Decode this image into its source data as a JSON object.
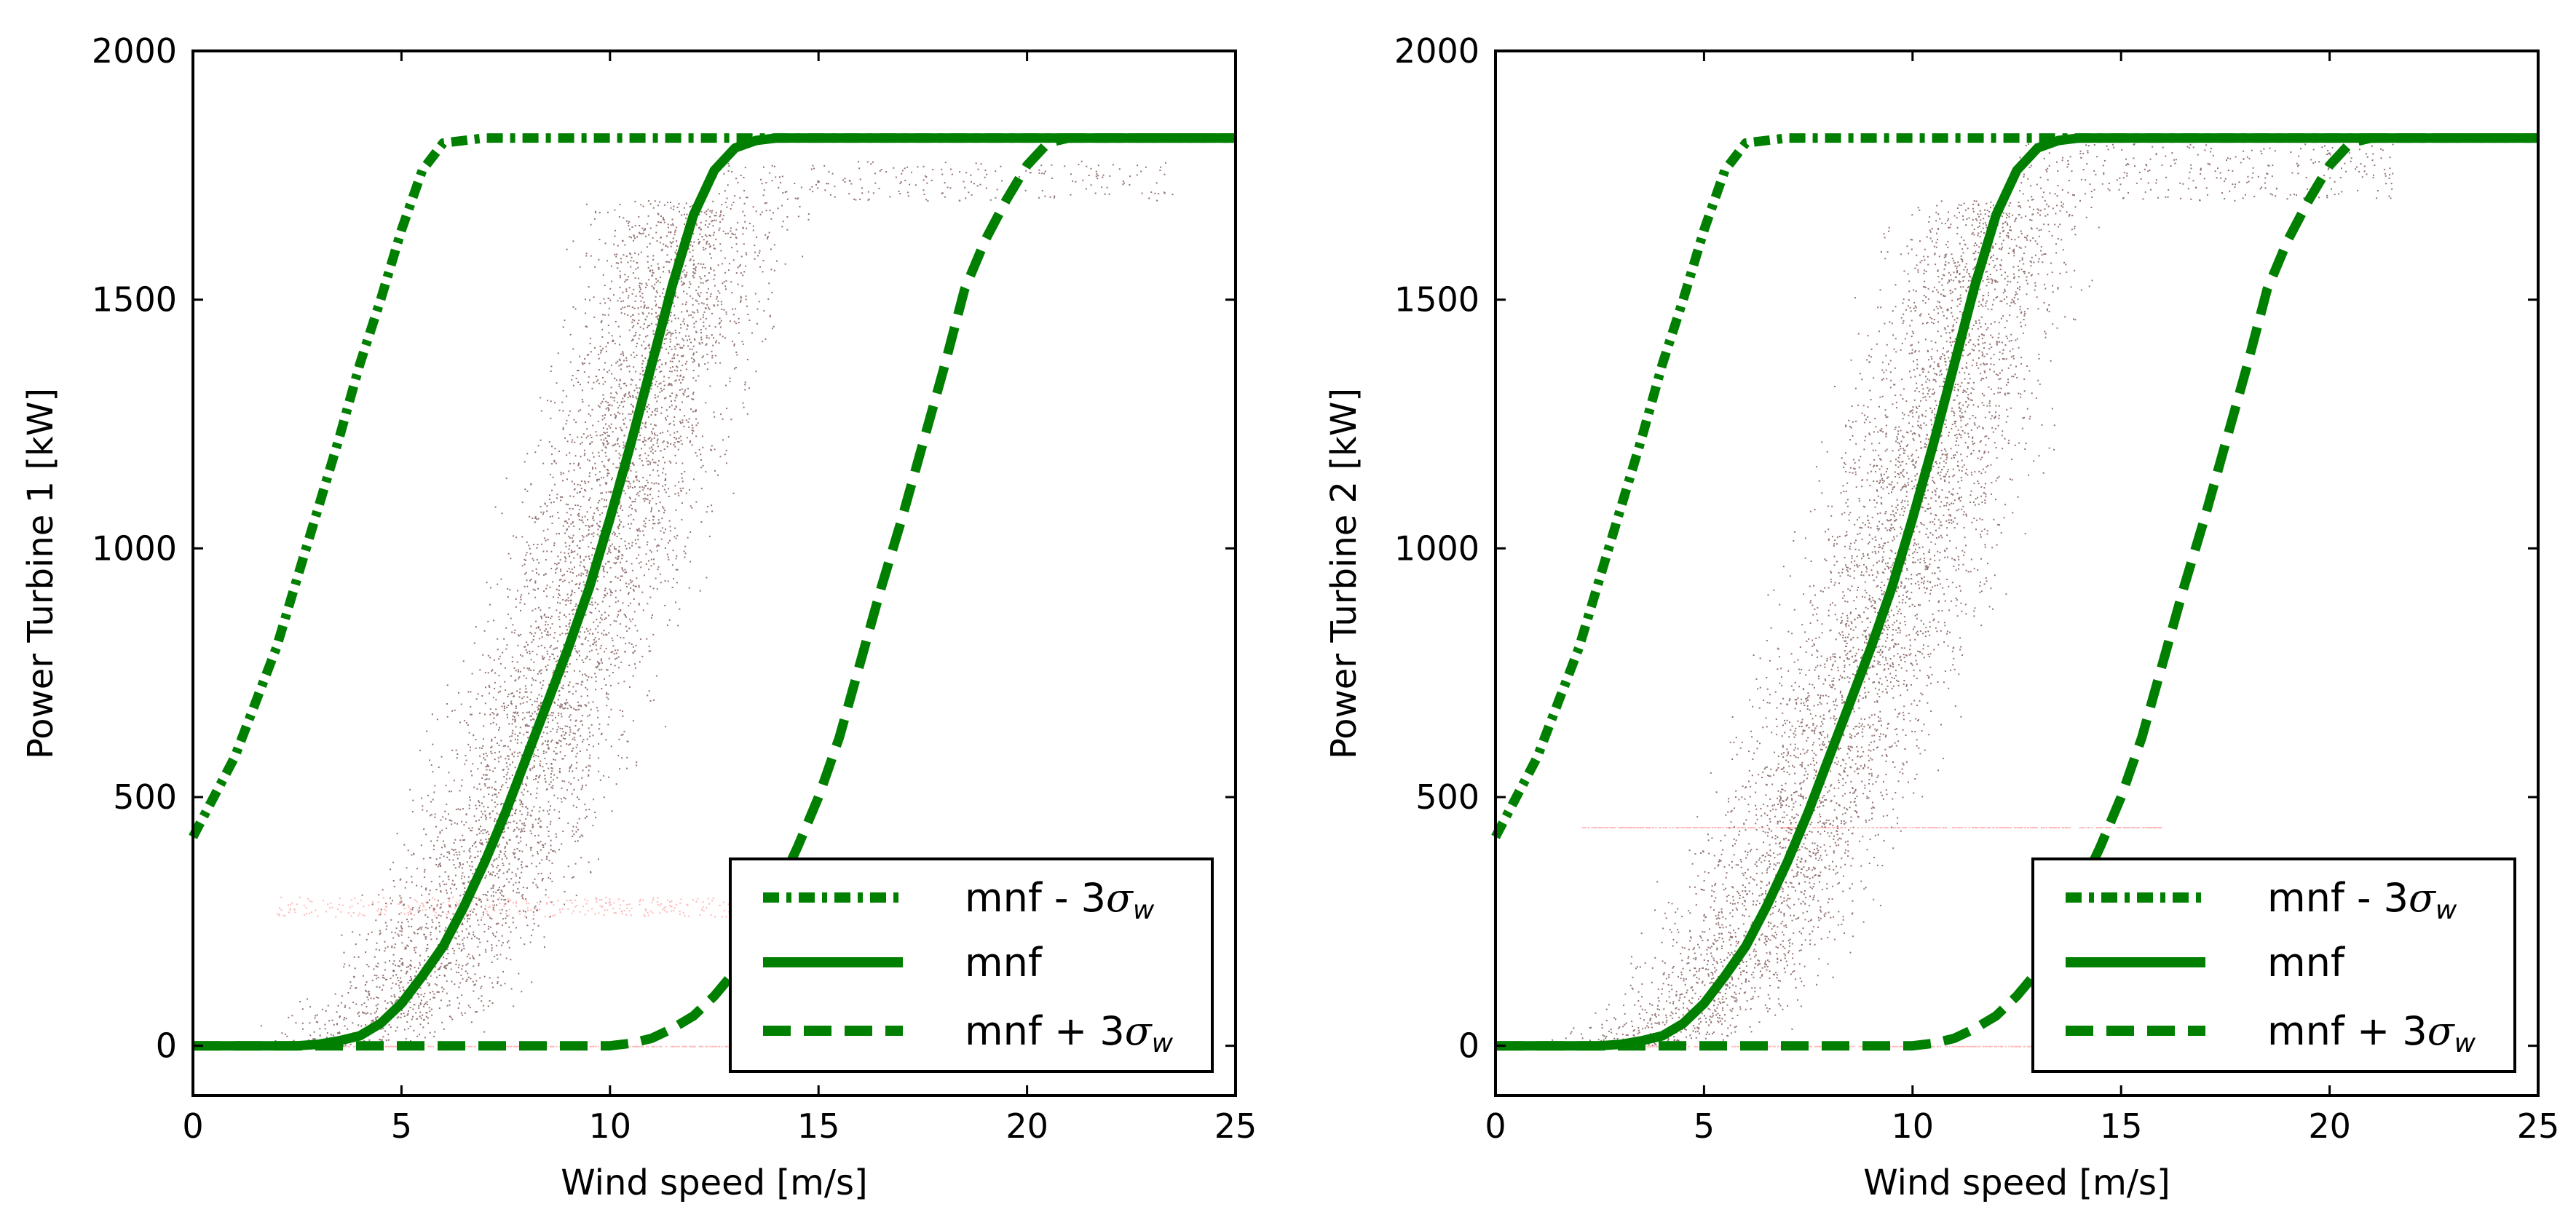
{
  "chart_data": [
    {
      "type": "scatter",
      "panel": "left",
      "xlabel": "Wind speed [m/s]",
      "ylabel": "Power Turbine 1 [kW]",
      "xlim": [
        0,
        25
      ],
      "ylim": [
        -100,
        2000
      ],
      "xticks": [
        "0",
        "5",
        "10",
        "15",
        "20",
        "25"
      ],
      "yticks": [
        "0",
        "500",
        "1000",
        "1500",
        "2000"
      ],
      "xtick_values": [
        0,
        5,
        10,
        15,
        20,
        25
      ],
      "ytick_values": [
        0,
        500,
        1000,
        1500,
        2000
      ],
      "legend_position": "lower-right",
      "series": [
        {
          "name": "mnf - 3σw",
          "label": "mnf - 3",
          "style": "dash-dot",
          "color": "#007f00",
          "x": [
            0,
            0.5,
            1,
            1.5,
            2,
            2.5,
            3,
            3.5,
            4,
            4.5,
            5,
            5.5,
            6,
            7,
            9,
            12,
            25
          ],
          "y": [
            420,
            500,
            580,
            690,
            800,
            940,
            1080,
            1220,
            1370,
            1500,
            1640,
            1760,
            1815,
            1825,
            1825,
            1825,
            1825
          ]
        },
        {
          "name": "mnf",
          "label": "mnf",
          "style": "solid",
          "color": "#007f00",
          "x": [
            0,
            2.5,
            3,
            3.5,
            4,
            4.5,
            5,
            5.5,
            6,
            6.5,
            7,
            7.5,
            8,
            8.5,
            9,
            9.5,
            10,
            10.5,
            11,
            11.5,
            12,
            12.5,
            13,
            13.5,
            14,
            25
          ],
          "y": [
            0,
            0,
            3,
            10,
            20,
            45,
            85,
            140,
            200,
            280,
            370,
            470,
            580,
            690,
            800,
            920,
            1060,
            1210,
            1370,
            1530,
            1670,
            1760,
            1805,
            1820,
            1825,
            1825
          ]
        },
        {
          "name": "mnf + 3σw",
          "label": "mnf + 3",
          "style": "dashed",
          "color": "#007f00",
          "x": [
            0,
            10,
            10.5,
            11,
            11.5,
            12,
            12.5,
            13,
            13.5,
            14,
            14.5,
            15,
            15.5,
            16,
            16.5,
            17,
            17.5,
            18,
            18.5,
            19,
            19.5,
            20,
            20.5,
            21,
            25
          ],
          "y": [
            0,
            0,
            5,
            15,
            35,
            60,
            100,
            150,
            220,
            310,
            400,
            500,
            620,
            770,
            920,
            1060,
            1210,
            1360,
            1520,
            1620,
            1700,
            1770,
            1815,
            1825,
            1825
          ]
        }
      ],
      "scatter_color": "#3a0000",
      "scatter_accent_color": "#ff3030",
      "scatter_model": {
        "mean_x": [
          0,
          3,
          4,
          5,
          6,
          7,
          8,
          9,
          10,
          11,
          12,
          13,
          14,
          25
        ],
        "mean_y": [
          0,
          0,
          25,
          85,
          200,
          370,
          580,
          800,
          1060,
          1370,
          1670,
          1805,
          1820,
          1825
        ],
        "spread_ms": 1.3,
        "cap_kw": 1780,
        "max_wind": 23.5
      }
    },
    {
      "type": "scatter",
      "panel": "right",
      "xlabel": "Wind speed [m/s]",
      "ylabel": "Power Turbine 2 [kW]",
      "xlim": [
        0,
        25
      ],
      "ylim": [
        -100,
        2000
      ],
      "xticks": [
        "0",
        "5",
        "10",
        "15",
        "20",
        "25"
      ],
      "yticks": [
        "0",
        "500",
        "1000",
        "1500",
        "2000"
      ],
      "xtick_values": [
        0,
        5,
        10,
        15,
        20,
        25
      ],
      "ytick_values": [
        0,
        500,
        1000,
        1500,
        2000
      ],
      "legend_position": "lower-right",
      "series": [
        {
          "name": "mnf - 3σw",
          "label": "mnf - 3",
          "style": "dash-dot",
          "color": "#007f00",
          "x": [
            0,
            0.5,
            1,
            1.5,
            2,
            2.5,
            3,
            3.5,
            4,
            4.5,
            5,
            5.5,
            6,
            7,
            9,
            12,
            25
          ],
          "y": [
            420,
            500,
            580,
            690,
            800,
            940,
            1080,
            1220,
            1370,
            1500,
            1640,
            1760,
            1815,
            1825,
            1825,
            1825,
            1825
          ]
        },
        {
          "name": "mnf",
          "label": "mnf",
          "style": "solid",
          "color": "#007f00",
          "x": [
            0,
            2.5,
            3,
            3.5,
            4,
            4.5,
            5,
            5.5,
            6,
            6.5,
            7,
            7.5,
            8,
            8.5,
            9,
            9.5,
            10,
            10.5,
            11,
            11.5,
            12,
            12.5,
            13,
            13.5,
            14,
            25
          ],
          "y": [
            0,
            0,
            3,
            10,
            20,
            45,
            85,
            140,
            200,
            280,
            370,
            470,
            580,
            690,
            800,
            920,
            1060,
            1210,
            1370,
            1530,
            1670,
            1760,
            1805,
            1820,
            1825,
            1825
          ]
        },
        {
          "name": "mnf + 3σw",
          "label": "mnf + 3",
          "style": "dashed",
          "color": "#007f00",
          "x": [
            0,
            10,
            10.5,
            11,
            11.5,
            12,
            12.5,
            13,
            13.5,
            14,
            14.5,
            15,
            15.5,
            16,
            16.5,
            17,
            17.5,
            18,
            18.5,
            19,
            19.5,
            20,
            20.5,
            21,
            25
          ],
          "y": [
            0,
            0,
            5,
            15,
            35,
            60,
            100,
            150,
            220,
            310,
            400,
            500,
            620,
            770,
            920,
            1060,
            1210,
            1360,
            1520,
            1620,
            1700,
            1770,
            1815,
            1825,
            1825
          ]
        }
      ],
      "scatter_color": "#3a0000",
      "scatter_accent_color": "#ff3030",
      "scatter_model": {
        "mean_x": [
          0,
          3,
          4,
          5,
          6,
          7,
          8,
          9,
          10,
          11,
          12,
          13,
          14,
          25
        ],
        "mean_y": [
          0,
          0,
          25,
          85,
          200,
          370,
          580,
          800,
          1060,
          1370,
          1670,
          1805,
          1820,
          1825
        ],
        "spread_ms": 1.3,
        "cap_kw": 1815,
        "max_wind": 21.5
      }
    }
  ],
  "legend": {
    "entries": [
      "mnf - 3",
      "mnf",
      "mnf + 3"
    ],
    "sigma_symbol": "σ",
    "sigma_subscript": "w"
  }
}
